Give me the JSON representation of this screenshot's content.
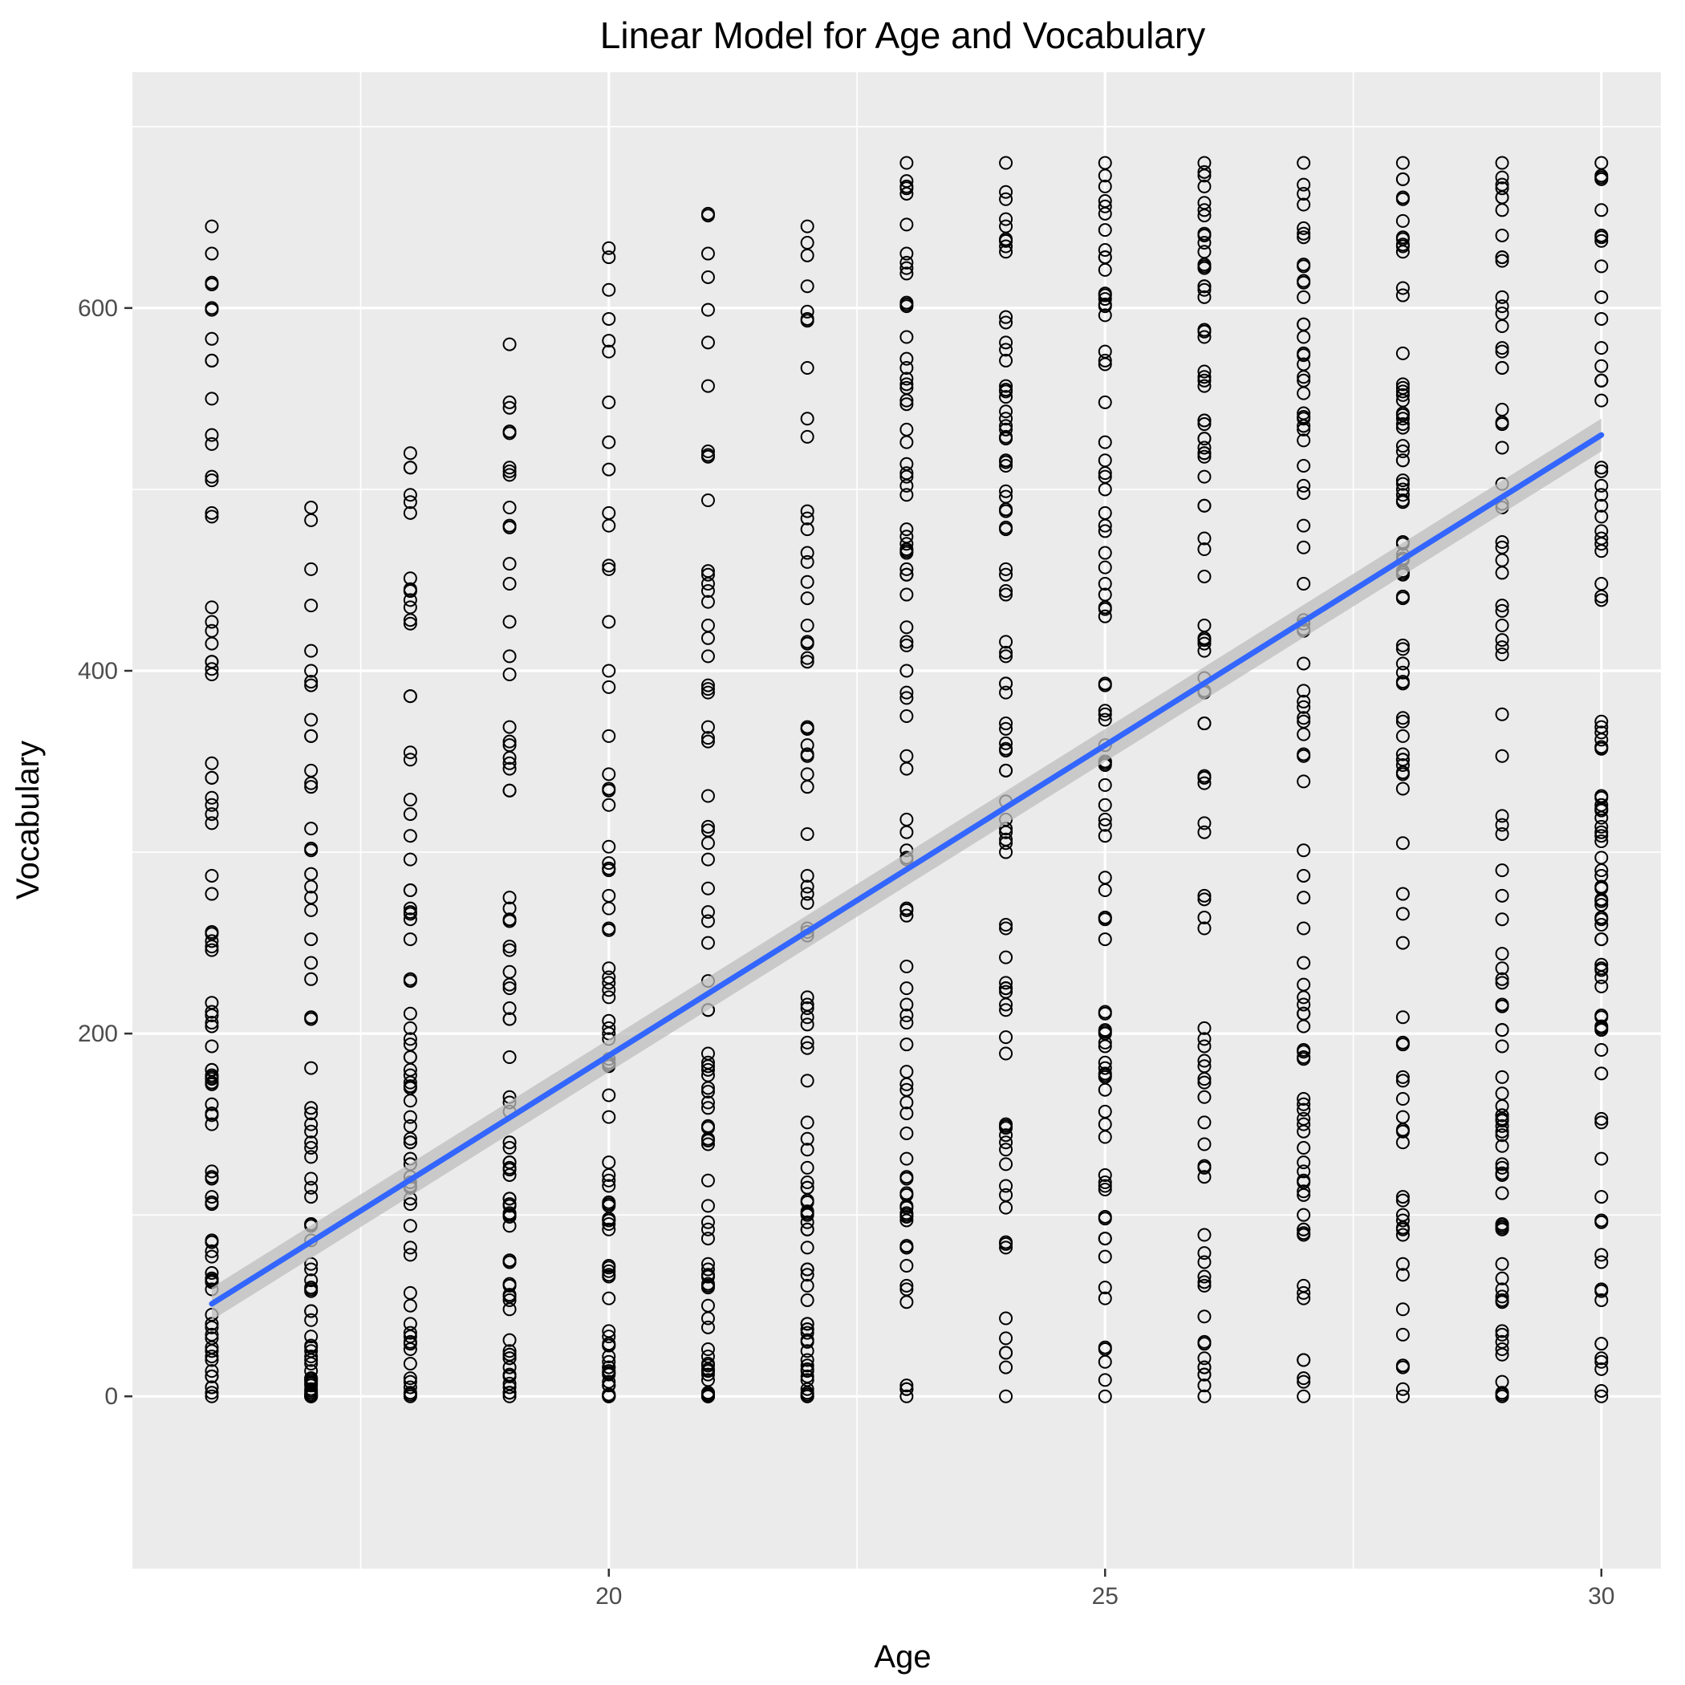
{
  "chart_data": {
    "type": "scatter",
    "title": "Linear Model for  Age and Vocabulary",
    "xlabel": "Age",
    "ylabel": "Vocabulary",
    "xlim": [
      15.2,
      30.6
    ],
    "ylim": [
      -95,
      730
    ],
    "x_ticks": [
      20,
      25,
      30
    ],
    "y_ticks": [
      0,
      200,
      400,
      600
    ],
    "grid": true,
    "legend": "none",
    "colors": {
      "panel": "#ebebeb",
      "grid": "#ffffff",
      "points": "#000000",
      "fit_line": "#3366ff",
      "ribbon": "#bdbdbd"
    },
    "series": [
      {
        "kind": "points",
        "columns": [
          {
            "x": 16,
            "max": 645,
            "extras": [
              550,
              485,
              405,
              398
            ]
          },
          {
            "x": 17,
            "max": 490,
            "extras": [
              345
            ]
          },
          {
            "x": 18,
            "max": 520,
            "extras": []
          },
          {
            "x": 19,
            "max": 580,
            "extras": []
          },
          {
            "x": 20,
            "max": 633,
            "extras": []
          },
          {
            "x": 21,
            "max": 652,
            "extras": []
          },
          {
            "x": 22,
            "max": 645,
            "extras": []
          },
          {
            "x": 23,
            "max": 680,
            "extras": []
          },
          {
            "x": 24,
            "max": 680,
            "extras": []
          },
          {
            "x": 25,
            "max": 680,
            "extras": []
          },
          {
            "x": 26,
            "max": 680,
            "extras": []
          },
          {
            "x": 27,
            "max": 680,
            "extras": []
          },
          {
            "x": 28,
            "max": 680,
            "extras": []
          },
          {
            "x": 29,
            "max": 680,
            "extras": []
          },
          {
            "x": 30,
            "max": 680,
            "extras": []
          }
        ]
      },
      {
        "kind": "linear_fit",
        "x": [
          16,
          30
        ],
        "y": [
          51,
          530
        ]
      }
    ]
  }
}
